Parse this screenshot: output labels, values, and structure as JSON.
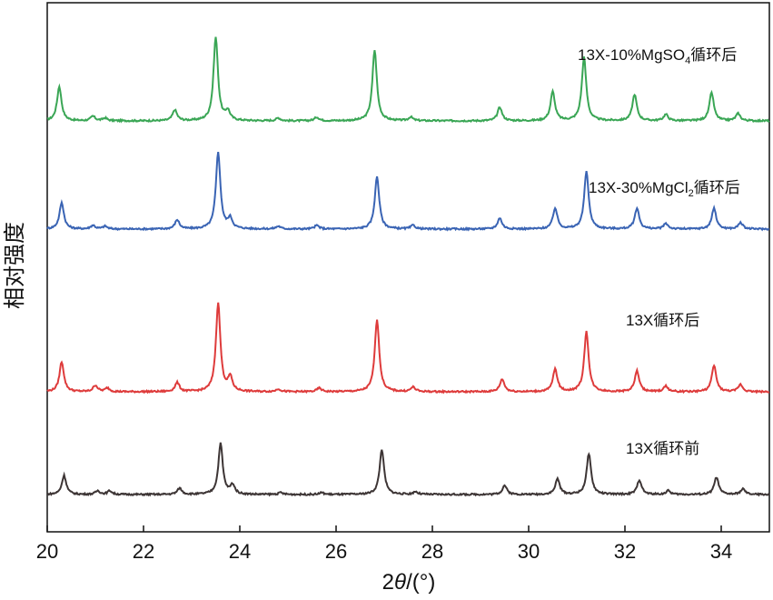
{
  "chart_data": {
    "type": "line",
    "xlabel_prefix": "2",
    "xlabel_theta": "θ",
    "xlabel_suffix": "/(°)",
    "ylabel": "相对强度",
    "xlim": [
      20,
      35
    ],
    "xticks": [
      "20",
      "22",
      "24",
      "26",
      "28",
      "30",
      "32",
      "34"
    ],
    "grid": false,
    "series": [
      {
        "name_parts": [
          "13X-10%MgSO",
          "4",
          "循环后"
        ],
        "color": "#3aa655",
        "baseline": 0.05,
        "peaks": [
          [
            20.25,
            0.38
          ],
          [
            20.95,
            0.05
          ],
          [
            21.2,
            0.03
          ],
          [
            22.65,
            0.12
          ],
          [
            23.5,
            0.92
          ],
          [
            23.75,
            0.1
          ],
          [
            24.8,
            0.03
          ],
          [
            25.6,
            0.04
          ],
          [
            26.8,
            0.78
          ],
          [
            27.55,
            0.04
          ],
          [
            29.4,
            0.15
          ],
          [
            30.5,
            0.32
          ],
          [
            31.15,
            0.7
          ],
          [
            32.2,
            0.29
          ],
          [
            32.85,
            0.07
          ],
          [
            33.8,
            0.31
          ],
          [
            34.35,
            0.08
          ]
        ]
      },
      {
        "name_parts": [
          "13X-30%MgCl",
          "2",
          "循环后"
        ],
        "color": "#3a64b4",
        "baseline": 0.03,
        "peaks": [
          [
            20.3,
            0.29
          ],
          [
            20.95,
            0.04
          ],
          [
            21.2,
            0.03
          ],
          [
            22.7,
            0.1
          ],
          [
            23.55,
            0.85
          ],
          [
            23.8,
            0.11
          ],
          [
            24.8,
            0.03
          ],
          [
            25.6,
            0.04
          ],
          [
            26.85,
            0.58
          ],
          [
            27.6,
            0.04
          ],
          [
            29.4,
            0.12
          ],
          [
            30.55,
            0.23
          ],
          [
            31.2,
            0.63
          ],
          [
            32.25,
            0.23
          ],
          [
            32.85,
            0.06
          ],
          [
            33.85,
            0.23
          ],
          [
            34.4,
            0.07
          ]
        ]
      },
      {
        "name_parts": [
          "13X循环后"
        ],
        "color": "#de3b3b",
        "baseline": 0.02,
        "peaks": [
          [
            20.3,
            0.33
          ],
          [
            21.0,
            0.07
          ],
          [
            21.25,
            0.04
          ],
          [
            22.7,
            0.1
          ],
          [
            23.55,
            0.98
          ],
          [
            23.8,
            0.15
          ],
          [
            24.8,
            0.03
          ],
          [
            25.65,
            0.04
          ],
          [
            26.85,
            0.8
          ],
          [
            27.6,
            0.05
          ],
          [
            29.45,
            0.14
          ],
          [
            30.55,
            0.25
          ],
          [
            31.2,
            0.66
          ],
          [
            32.25,
            0.23
          ],
          [
            32.85,
            0.06
          ],
          [
            33.85,
            0.29
          ],
          [
            34.4,
            0.08
          ]
        ]
      },
      {
        "name_parts": [
          "13X循环前"
        ],
        "color": "#3d3535",
        "baseline": 0.02,
        "peaks": [
          [
            20.35,
            0.21
          ],
          [
            21.05,
            0.04
          ],
          [
            21.3,
            0.04
          ],
          [
            22.75,
            0.07
          ],
          [
            23.6,
            0.56
          ],
          [
            23.85,
            0.1
          ],
          [
            24.85,
            0.02
          ],
          [
            25.7,
            0.02
          ],
          [
            26.95,
            0.5
          ],
          [
            27.65,
            0.03
          ],
          [
            29.5,
            0.1
          ],
          [
            30.6,
            0.17
          ],
          [
            31.25,
            0.45
          ],
          [
            32.3,
            0.16
          ],
          [
            32.9,
            0.04
          ],
          [
            33.9,
            0.19
          ],
          [
            34.45,
            0.06
          ]
        ]
      }
    ]
  }
}
